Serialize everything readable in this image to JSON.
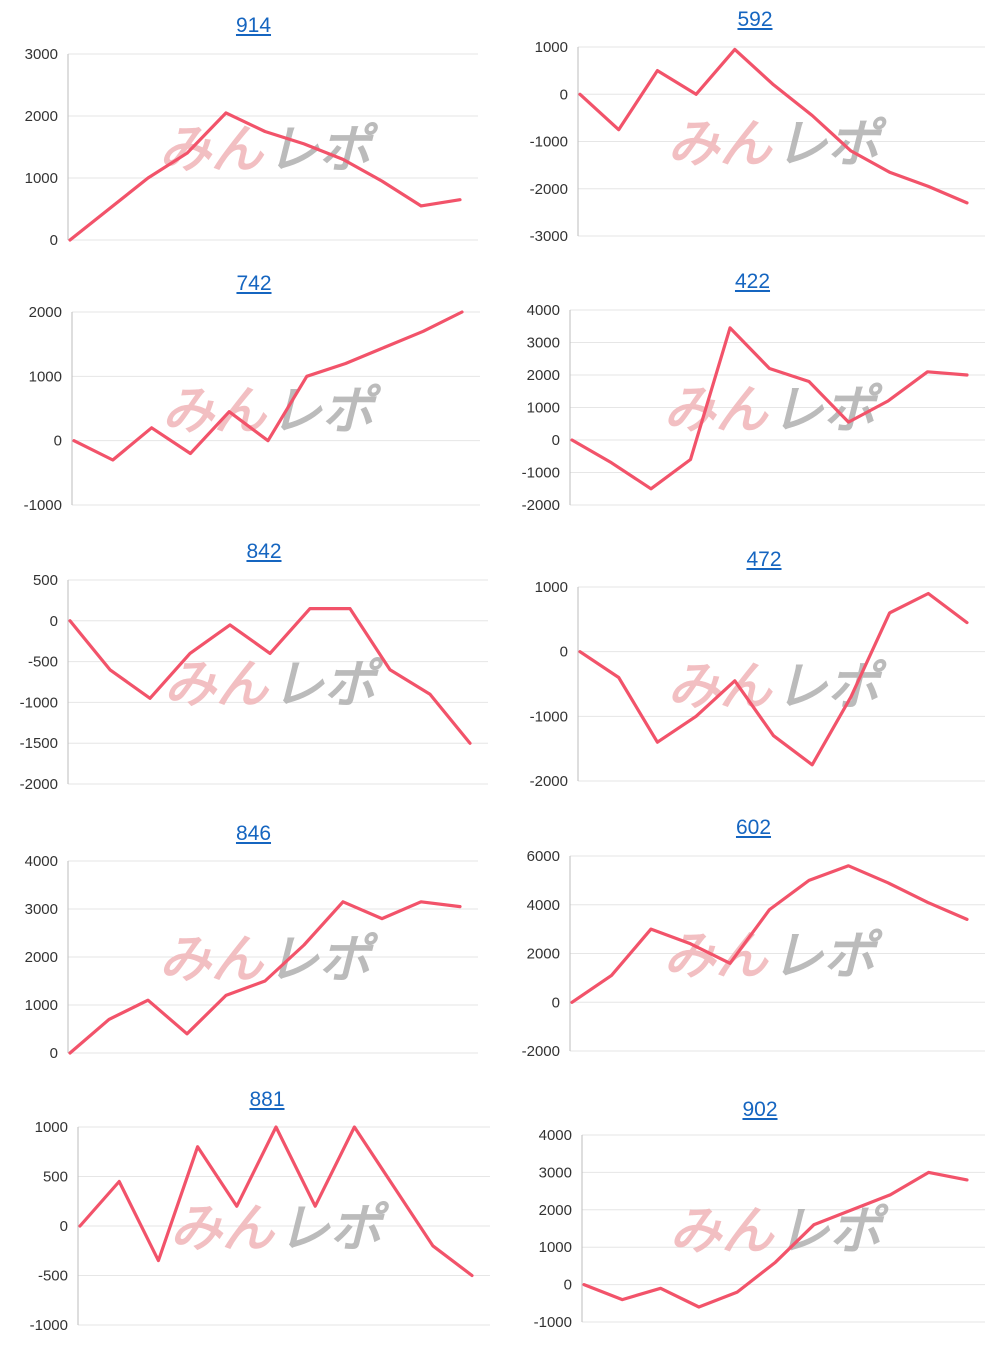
{
  "colors": {
    "line": "#f2536a",
    "grid": "#e6e6e6",
    "axis": "#bdbdbd",
    "title": "#1565c0",
    "watermark_a": "#f0b5b8",
    "watermark_b": "#b0b0b0"
  },
  "watermark": {
    "part_a": "みん",
    "part_b": "レポ"
  },
  "chart_data": [
    {
      "type": "line",
      "title": "914",
      "ylim": [
        0,
        3000
      ],
      "yticks": [
        0,
        1000,
        2000,
        3000
      ],
      "grid": true,
      "x": [
        0,
        10,
        20,
        30,
        40,
        50,
        60,
        70,
        80,
        90,
        100
      ],
      "values": [
        0,
        500,
        1000,
        1400,
        2050,
        1750,
        1550,
        1300,
        950,
        550,
        650
      ]
    },
    {
      "type": "line",
      "title": "592",
      "ylim": [
        -3000,
        1000
      ],
      "yticks": [
        -3000,
        -2000,
        -1000,
        0,
        1000
      ],
      "grid": true,
      "x": [
        0,
        10,
        20,
        30,
        40,
        50,
        60,
        70,
        80,
        90,
        100
      ],
      "values": [
        0,
        -750,
        500,
        0,
        950,
        200,
        -450,
        -1200,
        -1650,
        -1950,
        -2300
      ]
    },
    {
      "type": "line",
      "title": "742",
      "ylim": [
        -1000,
        2000
      ],
      "yticks": [
        -1000,
        0,
        1000,
        2000
      ],
      "grid": true,
      "x": [
        0,
        10,
        20,
        30,
        40,
        50,
        60,
        70,
        80,
        90,
        100
      ],
      "values": [
        0,
        -300,
        200,
        -200,
        450,
        0,
        1000,
        1200,
        1450,
        1700,
        2000
      ]
    },
    {
      "type": "line",
      "title": "422",
      "ylim": [
        -2000,
        4000
      ],
      "yticks": [
        -2000,
        -1000,
        0,
        1000,
        2000,
        3000,
        4000
      ],
      "grid": true,
      "x": [
        0,
        10,
        20,
        30,
        40,
        50,
        60,
        70,
        80,
        90,
        100
      ],
      "values": [
        0,
        -700,
        -1500,
        -600,
        3450,
        2200,
        1800,
        550,
        1200,
        2100,
        2000
      ]
    },
    {
      "type": "line",
      "title": "842",
      "ylim": [
        -2000,
        500
      ],
      "yticks": [
        -2000,
        -1500,
        -1000,
        -500,
        0,
        500
      ],
      "grid": true,
      "x": [
        0,
        10,
        20,
        30,
        40,
        50,
        60,
        70,
        80,
        90,
        100
      ],
      "values": [
        0,
        -600,
        -950,
        -400,
        -50,
        -400,
        150,
        150,
        -600,
        -900,
        -1500
      ]
    },
    {
      "type": "line",
      "title": "472",
      "ylim": [
        -2000,
        1000
      ],
      "yticks": [
        -2000,
        -1000,
        0,
        1000
      ],
      "grid": true,
      "x": [
        0,
        10,
        20,
        30,
        40,
        50,
        60,
        70,
        80,
        90,
        100
      ],
      "values": [
        0,
        -400,
        -1400,
        -1000,
        -450,
        -1300,
        -1750,
        -700,
        600,
        900,
        450
      ]
    },
    {
      "type": "line",
      "title": "846",
      "ylim": [
        0,
        4000
      ],
      "yticks": [
        0,
        1000,
        2000,
        3000,
        4000
      ],
      "grid": true,
      "x": [
        0,
        10,
        20,
        30,
        40,
        50,
        60,
        70,
        80,
        90,
        100
      ],
      "values": [
        0,
        700,
        1100,
        400,
        1200,
        1500,
        2250,
        3150,
        2800,
        3150,
        3050
      ]
    },
    {
      "type": "line",
      "title": "602",
      "ylim": [
        -2000,
        6000
      ],
      "yticks": [
        -2000,
        0,
        2000,
        4000,
        6000
      ],
      "grid": true,
      "x": [
        0,
        10,
        20,
        30,
        40,
        50,
        60,
        70,
        80,
        90,
        100
      ],
      "values": [
        0,
        1100,
        3000,
        2400,
        1600,
        3800,
        5000,
        5600,
        4900,
        4100,
        3400
      ]
    },
    {
      "type": "line",
      "title": "881",
      "ylim": [
        -1000,
        1000
      ],
      "yticks": [
        -1000,
        -500,
        0,
        500,
        1000
      ],
      "grid": true,
      "x": [
        0,
        10,
        20,
        30,
        40,
        50,
        60,
        70,
        80,
        90,
        100
      ],
      "values": [
        0,
        450,
        -350,
        800,
        200,
        1000,
        200,
        1000,
        400,
        -200,
        -500
      ]
    },
    {
      "type": "line",
      "title": "902",
      "ylim": [
        -1000,
        4000
      ],
      "yticks": [
        -1000,
        0,
        1000,
        2000,
        3000,
        4000
      ],
      "grid": true,
      "x": [
        0,
        10,
        20,
        30,
        40,
        50,
        60,
        70,
        80,
        90,
        100
      ],
      "values": [
        0,
        -400,
        -100,
        -600,
        -200,
        600,
        1600,
        2000,
        2400,
        3000,
        2800
      ]
    }
  ]
}
